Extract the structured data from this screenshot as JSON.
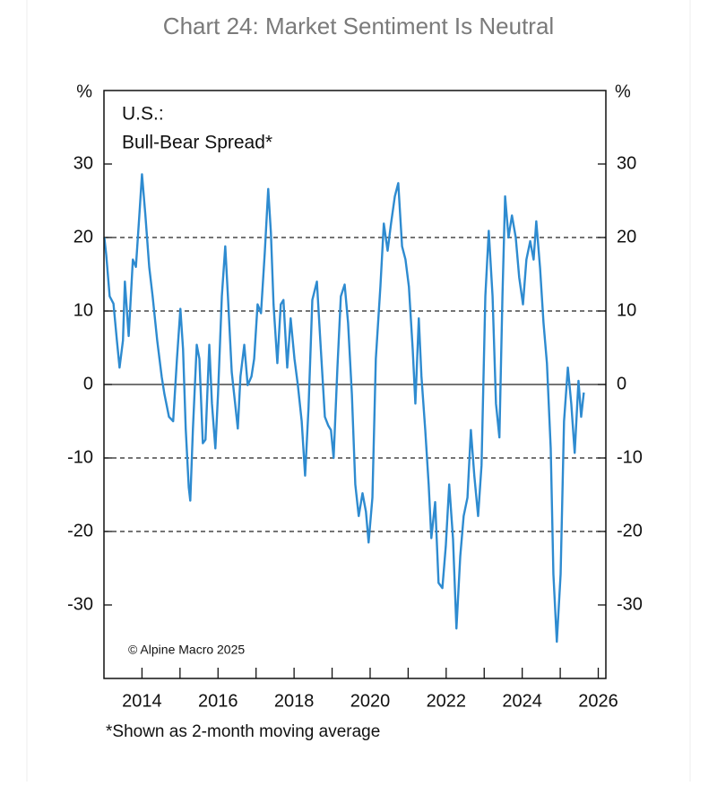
{
  "chart_data": {
    "type": "line",
    "title": "Chart 24: Market Sentiment Is Neutral",
    "annotations": [
      "U.S.:",
      "Bull-Bear Spread*",
      "© Alpine Macro 2025"
    ],
    "footnote": "*Shown as 2-month moving average",
    "yunit": "%",
    "y2unit": "%",
    "color": "#2e8bd0",
    "x": [
      2013.01,
      2013.06,
      2013.15,
      2013.25,
      2013.34,
      2013.41,
      2013.5,
      2013.55,
      2013.65,
      2013.76,
      2013.84,
      2013.93,
      2014.0,
      2014.09,
      2014.19,
      2014.28,
      2014.4,
      2014.52,
      2014.59,
      2014.71,
      2014.82,
      2014.92,
      2015.01,
      2015.08,
      2015.15,
      2015.23,
      2015.27,
      2015.34,
      2015.44,
      2015.51,
      2015.6,
      2015.67,
      2015.77,
      2015.84,
      2015.93,
      2016.0,
      2016.1,
      2016.19,
      2016.26,
      2016.36,
      2016.45,
      2016.52,
      2016.59,
      2016.69,
      2016.78,
      2016.88,
      2016.95,
      2017.04,
      2017.13,
      2017.23,
      2017.32,
      2017.39,
      2017.46,
      2017.56,
      2017.65,
      2017.72,
      2017.82,
      2017.91,
      2018.01,
      2018.1,
      2018.2,
      2018.29,
      2018.38,
      2018.48,
      2018.6,
      2018.69,
      2018.81,
      2018.9,
      2018.97,
      2019.04,
      2019.14,
      2019.23,
      2019.33,
      2019.42,
      2019.52,
      2019.61,
      2019.7,
      2019.8,
      2019.89,
      2019.96,
      2020.06,
      2020.15,
      2020.27,
      2020.36,
      2020.46,
      2020.55,
      2020.65,
      2020.74,
      2020.84,
      2020.93,
      2021.02,
      2021.12,
      2021.19,
      2021.28,
      2021.35,
      2021.45,
      2021.54,
      2021.61,
      2021.71,
      2021.8,
      2021.9,
      2021.99,
      2022.08,
      2022.18,
      2022.27,
      2022.37,
      2022.46,
      2022.56,
      2022.65,
      2022.74,
      2022.84,
      2022.93,
      2023.03,
      2023.12,
      2023.22,
      2023.31,
      2023.4,
      2023.48,
      2023.55,
      2023.64,
      2023.73,
      2023.83,
      2023.92,
      2024.02,
      2024.11,
      2024.21,
      2024.3,
      2024.37,
      2024.47,
      2024.56,
      2024.65,
      2024.75,
      2024.82,
      2024.91,
      2025.01,
      2025.1,
      2025.2,
      2025.29,
      2025.38,
      2025.48,
      2025.55,
      2025.62
    ],
    "values": [
      20,
      17.6,
      12,
      11,
      6,
      2.3,
      6,
      14,
      6.6,
      17,
      16,
      23,
      28.6,
      23,
      16,
      12,
      6,
      1,
      -1.3,
      -4.4,
      -5,
      3.5,
      10.3,
      4.8,
      -6,
      -14,
      -15.8,
      -6,
      5.4,
      3.5,
      -8,
      -7.5,
      5.4,
      -2.6,
      -8.7,
      -1.3,
      12,
      18.8,
      12,
      1.7,
      -2.6,
      -6,
      1.1,
      5.4,
      -0.1,
      1.1,
      3.5,
      10.9,
      9.7,
      18,
      26.6,
      20.7,
      10.9,
      2.9,
      10.9,
      11.5,
      2.3,
      9,
      3.5,
      -0.1,
      -5,
      -12.4,
      -3.2,
      11.5,
      14,
      6,
      -4.4,
      -5.6,
      -6.2,
      -10,
      2.3,
      12,
      13.6,
      8.4,
      -1.3,
      -13.6,
      -17.9,
      -14.8,
      -17.3,
      -21.5,
      -15.4,
      3.5,
      13.3,
      21.9,
      18.2,
      21.9,
      25.6,
      27.4,
      18.8,
      17,
      13.3,
      4.8,
      -2.6,
      9,
      1.1,
      -6.2,
      -13.6,
      -20.9,
      -16,
      -27,
      -27.7,
      -22,
      -13.6,
      -21,
      -33.2,
      -23.4,
      -17.9,
      -15.4,
      -6.2,
      -12.4,
      -17.9,
      -11,
      12,
      20.9,
      12,
      -2.6,
      -7.2,
      12,
      25.6,
      20,
      23,
      20,
      14.6,
      10.9,
      17,
      19.5,
      17,
      22.2,
      15.8,
      8.4,
      2.9,
      -8.7,
      -25.8,
      -35,
      -25.8,
      -5,
      2.3,
      -2.6,
      -9.3,
      0.5,
      -4.4,
      -1.1
    ],
    "xlim": [
      2013,
      2026.2
    ],
    "xticks": [
      2014,
      2016,
      2018,
      2020,
      2022,
      2024,
      2026
    ],
    "xminorticks": [
      2015,
      2017,
      2019,
      2021,
      2023,
      2025
    ],
    "ylim": [
      -40,
      40
    ],
    "yticks": [
      -30,
      -20,
      -10,
      0,
      10,
      20,
      30
    ],
    "y2lim": [
      -40,
      40
    ],
    "y2ticks": [
      -30,
      -20,
      -10,
      0,
      10,
      20,
      30
    ],
    "dashed_grid": [
      -20,
      -10,
      10,
      20
    ],
    "zero_line": 0
  }
}
